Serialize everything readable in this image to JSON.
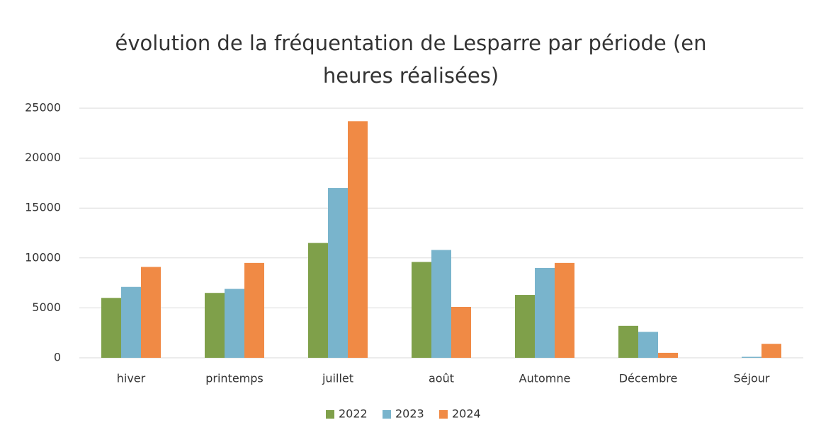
{
  "chart_data": {
    "type": "bar",
    "title": "évolution de la fréquentation de Lesparre par période (en heures réalisées)",
    "categories": [
      "hiver",
      "printemps",
      "juillet",
      "août",
      "Automne",
      "Décembre",
      "Séjour"
    ],
    "series": [
      {
        "name": "2022",
        "color": "#7fa04a",
        "values": [
          6000,
          6500,
          11500,
          9600,
          6300,
          3200,
          0
        ]
      },
      {
        "name": "2023",
        "color": "#79b4cc",
        "values": [
          7100,
          6900,
          17000,
          10800,
          9000,
          2600,
          100
        ]
      },
      {
        "name": "2024",
        "color": "#f08a45",
        "values": [
          9100,
          9500,
          23700,
          5100,
          9500,
          500,
          1400
        ]
      }
    ],
    "ylim": [
      0,
      25000
    ],
    "yticks": [
      0,
      5000,
      10000,
      15000,
      20000,
      25000
    ],
    "grid": true,
    "legend": "bottom"
  }
}
